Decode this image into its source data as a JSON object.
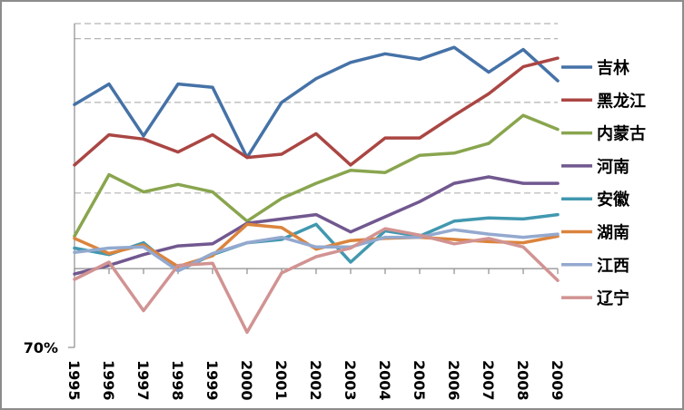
{
  "chart_data": {
    "type": "line",
    "title": "",
    "xlabel": "",
    "ylabel": "",
    "ylim": [
      70,
      100
    ],
    "y_tick_labels": [
      {
        "value": 70,
        "label": "70%"
      }
    ],
    "gridlines_dashed": [
      84.3,
      92.7,
      98.6,
      100
    ],
    "x_axis_crossing": 77.3,
    "grid": true,
    "legend_position": "right",
    "categories": [
      "1995",
      "1996",
      "1997",
      "1998",
      "1999",
      "2000",
      "2001",
      "2002",
      "2003",
      "2004",
      "2005",
      "2006",
      "2007",
      "2008",
      "2009"
    ],
    "series": [
      {
        "name": "吉林",
        "color": "#4572a7",
        "values": [
          92.5,
          94.4,
          89.6,
          94.4,
          94.1,
          87.6,
          92.7,
          94.9,
          96.4,
          97.2,
          96.7,
          97.8,
          95.5,
          97.6,
          94.7
        ]
      },
      {
        "name": "黑龙江",
        "color": "#aa4643",
        "values": [
          86.9,
          89.7,
          89.3,
          88.1,
          89.7,
          87.6,
          87.9,
          89.8,
          86.9,
          89.4,
          89.4,
          91.5,
          93.5,
          96.0,
          96.8
        ]
      },
      {
        "name": "内蒙古",
        "color": "#89a54e",
        "values": [
          80.3,
          86.0,
          84.4,
          85.1,
          84.4,
          81.7,
          83.8,
          85.2,
          86.4,
          86.2,
          87.8,
          88.0,
          88.9,
          91.5,
          90.2
        ]
      },
      {
        "name": "河南",
        "color": "#71588f",
        "values": [
          76.8,
          77.6,
          78.6,
          79.4,
          79.6,
          81.5,
          81.9,
          82.3,
          80.7,
          82.1,
          83.5,
          85.2,
          85.8,
          85.2,
          85.2
        ]
      },
      {
        "name": "安徽",
        "color": "#4198af",
        "values": [
          79.2,
          78.6,
          79.7,
          77.1,
          78.6,
          79.7,
          80.0,
          81.4,
          77.9,
          80.8,
          80.3,
          81.7,
          82.0,
          81.9,
          82.3
        ]
      },
      {
        "name": "湖南",
        "color": "#db843d",
        "values": [
          80.1,
          78.7,
          79.5,
          77.5,
          78.5,
          81.4,
          81.1,
          79.1,
          79.9,
          80.1,
          80.2,
          80.0,
          79.8,
          79.7,
          80.3
        ]
      },
      {
        "name": "江西",
        "color": "#93a9cf",
        "values": [
          78.8,
          79.2,
          79.3,
          77.1,
          78.7,
          79.7,
          80.2,
          79.3,
          79.3,
          80.2,
          80.2,
          80.9,
          80.5,
          80.2,
          80.5
        ]
      },
      {
        "name": "辽宁",
        "color": "#d19392",
        "values": [
          76.3,
          77.9,
          73.4,
          77.6,
          77.8,
          71.4,
          76.9,
          78.4,
          79.2,
          81.0,
          80.4,
          79.6,
          80.1,
          79.3,
          76.2
        ]
      }
    ]
  }
}
